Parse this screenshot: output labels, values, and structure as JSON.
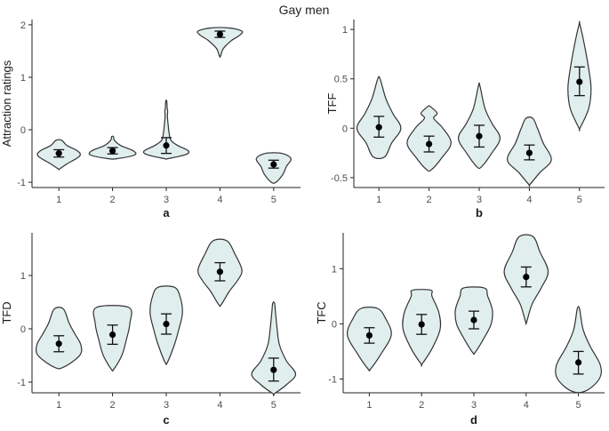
{
  "figure": {
    "title": "Gay men"
  },
  "chart_data": [
    {
      "type": "violin",
      "panel_label": "a",
      "ylabel": "Attraction ratings",
      "categories": [
        "1",
        "2",
        "3",
        "4",
        "5"
      ],
      "ylim": [
        -1.1,
        2.1
      ],
      "yticks": [
        -1,
        0,
        1,
        2
      ],
      "points": [
        {
          "mean": -0.45,
          "lower": -0.52,
          "upper": -0.38
        },
        {
          "mean": -0.4,
          "lower": -0.46,
          "upper": -0.34
        },
        {
          "mean": -0.3,
          "lower": -0.45,
          "upper": -0.15
        },
        {
          "mean": 1.82,
          "lower": 1.76,
          "upper": 1.88
        },
        {
          "mean": -0.66,
          "lower": -0.73,
          "upper": -0.58
        }
      ],
      "violins": [
        {
          "profile": [
            [
              -0.75,
              0.02
            ],
            [
              -0.65,
              0.35
            ],
            [
              -0.5,
              0.9
            ],
            [
              -0.4,
              0.8
            ],
            [
              -0.3,
              0.35
            ],
            [
              -0.2,
              0.12
            ]
          ]
        },
        {
          "profile": [
            [
              -0.55,
              0.2
            ],
            [
              -0.48,
              0.95
            ],
            [
              -0.4,
              0.9
            ],
            [
              -0.3,
              0.35
            ],
            [
              -0.2,
              0.08
            ],
            [
              -0.13,
              0.04
            ]
          ]
        },
        {
          "profile": [
            [
              -0.55,
              0.08
            ],
            [
              -0.47,
              0.85
            ],
            [
              -0.4,
              0.95
            ],
            [
              -0.3,
              0.5
            ],
            [
              -0.2,
              0.2
            ],
            [
              -0.05,
              0.12
            ],
            [
              0.1,
              0.08
            ],
            [
              0.25,
              0.05
            ],
            [
              0.35,
              0.06
            ],
            [
              0.42,
              0.04
            ],
            [
              0.55,
              0.02
            ]
          ]
        },
        {
          "profile": [
            [
              1.4,
              0.02
            ],
            [
              1.55,
              0.15
            ],
            [
              1.7,
              0.5
            ],
            [
              1.8,
              0.85
            ],
            [
              1.88,
              0.95
            ],
            [
              1.94,
              0.4
            ]
          ]
        },
        {
          "profile": [
            [
              -1.0,
              0.1
            ],
            [
              -0.85,
              0.4
            ],
            [
              -0.7,
              0.55
            ],
            [
              -0.55,
              0.75
            ],
            [
              -0.45,
              0.35
            ]
          ]
        }
      ]
    },
    {
      "type": "violin",
      "panel_label": "b",
      "ylabel": "TFF",
      "categories": [
        "1",
        "2",
        "3",
        "4",
        "5"
      ],
      "ylim": [
        -0.6,
        1.1
      ],
      "yticks": [
        -0.5,
        0.0,
        0.5,
        1.0
      ],
      "points": [
        {
          "mean": 0.01,
          "lower": -0.09,
          "upper": 0.12
        },
        {
          "mean": -0.16,
          "lower": -0.24,
          "upper": -0.08
        },
        {
          "mean": -0.08,
          "lower": -0.19,
          "upper": 0.03
        },
        {
          "mean": -0.25,
          "lower": -0.32,
          "upper": -0.17
        },
        {
          "mean": 0.47,
          "lower": 0.33,
          "upper": 0.62
        }
      ],
      "violins": [
        {
          "profile": [
            [
              -0.29,
              0.25
            ],
            [
              -0.15,
              0.55
            ],
            [
              0.0,
              0.95
            ],
            [
              0.15,
              0.6
            ],
            [
              0.3,
              0.3
            ],
            [
              0.5,
              0.05
            ]
          ]
        },
        {
          "profile": [
            [
              -0.42,
              0.1
            ],
            [
              -0.3,
              0.55
            ],
            [
              -0.15,
              0.95
            ],
            [
              0.0,
              0.6
            ],
            [
              0.1,
              0.2
            ],
            [
              0.15,
              0.35
            ],
            [
              0.22,
              0.05
            ]
          ]
        },
        {
          "profile": [
            [
              -0.39,
              0.1
            ],
            [
              -0.25,
              0.55
            ],
            [
              -0.1,
              0.9
            ],
            [
              0.05,
              0.55
            ],
            [
              0.2,
              0.25
            ],
            [
              0.43,
              0.03
            ]
          ]
        },
        {
          "profile": [
            [
              -0.57,
              0.02
            ],
            [
              -0.45,
              0.45
            ],
            [
              -0.32,
              0.95
            ],
            [
              -0.15,
              0.6
            ],
            [
              0.0,
              0.35
            ],
            [
              0.1,
              0.15
            ]
          ]
        },
        {
          "profile": [
            [
              0.0,
              0.02
            ],
            [
              0.2,
              0.4
            ],
            [
              0.4,
              0.5
            ],
            [
              0.6,
              0.4
            ],
            [
              0.8,
              0.25
            ],
            [
              1.05,
              0.02
            ]
          ]
        }
      ]
    },
    {
      "type": "violin",
      "panel_label": "c",
      "ylabel": "TFD",
      "categories": [
        "1",
        "2",
        "3",
        "4",
        "5"
      ],
      "ylim": [
        -1.2,
        1.8
      ],
      "yticks": [
        -1,
        0,
        1
      ],
      "points": [
        {
          "mean": -0.28,
          "lower": -0.43,
          "upper": -0.13
        },
        {
          "mean": -0.11,
          "lower": -0.29,
          "upper": 0.07
        },
        {
          "mean": 0.09,
          "lower": -0.1,
          "upper": 0.28
        },
        {
          "mean": 1.07,
          "lower": 0.9,
          "upper": 1.24
        },
        {
          "mean": -0.77,
          "lower": -0.98,
          "upper": -0.55
        }
      ],
      "violins": [
        {
          "profile": [
            [
              -0.72,
              0.2
            ],
            [
              -0.5,
              0.9
            ],
            [
              -0.3,
              0.95
            ],
            [
              -0.1,
              0.7
            ],
            [
              0.1,
              0.45
            ],
            [
              0.37,
              0.2
            ]
          ]
        },
        {
          "profile": [
            [
              -0.76,
              0.05
            ],
            [
              -0.5,
              0.4
            ],
            [
              -0.2,
              0.6
            ],
            [
              0.1,
              0.75
            ],
            [
              0.4,
              0.7
            ]
          ]
        },
        {
          "profile": [
            [
              -0.63,
              0.05
            ],
            [
              -0.3,
              0.35
            ],
            [
              0.0,
              0.55
            ],
            [
              0.3,
              0.7
            ],
            [
              0.6,
              0.6
            ],
            [
              0.78,
              0.35
            ]
          ]
        },
        {
          "profile": [
            [
              0.45,
              0.05
            ],
            [
              0.7,
              0.4
            ],
            [
              0.9,
              0.75
            ],
            [
              1.1,
              0.95
            ],
            [
              1.4,
              0.65
            ],
            [
              1.65,
              0.3
            ]
          ]
        },
        {
          "profile": [
            [
              -1.22,
              0.02
            ],
            [
              -1.05,
              0.55
            ],
            [
              -0.85,
              0.95
            ],
            [
              -0.6,
              0.55
            ],
            [
              -0.3,
              0.25
            ],
            [
              0.0,
              0.15
            ],
            [
              0.3,
              0.08
            ],
            [
              0.48,
              0.04
            ]
          ]
        }
      ]
    },
    {
      "type": "violin",
      "panel_label": "d",
      "ylabel": "TFC",
      "categories": [
        "1",
        "2",
        "3",
        "4",
        "5"
      ],
      "ylim": [
        -1.25,
        1.65
      ],
      "yticks": [
        -1,
        0,
        1
      ],
      "points": [
        {
          "mean": -0.21,
          "lower": -0.35,
          "upper": -0.07
        },
        {
          "mean": -0.01,
          "lower": -0.19,
          "upper": 0.17
        },
        {
          "mean": 0.07,
          "lower": -0.09,
          "upper": 0.23
        },
        {
          "mean": 0.85,
          "lower": 0.67,
          "upper": 1.03
        },
        {
          "mean": -0.7,
          "lower": -0.91,
          "upper": -0.5
        }
      ],
      "violins": [
        {
          "profile": [
            [
              -0.82,
              0.05
            ],
            [
              -0.55,
              0.5
            ],
            [
              -0.2,
              0.95
            ],
            [
              0.1,
              0.7
            ],
            [
              0.28,
              0.35
            ]
          ]
        },
        {
          "profile": [
            [
              -0.73,
              0.02
            ],
            [
              -0.45,
              0.45
            ],
            [
              -0.1,
              0.8
            ],
            [
              0.2,
              0.75
            ],
            [
              0.5,
              0.45
            ],
            [
              0.61,
              0.4
            ]
          ]
        },
        {
          "profile": [
            [
              -0.52,
              0.05
            ],
            [
              -0.25,
              0.45
            ],
            [
              0.0,
              0.75
            ],
            [
              0.25,
              0.8
            ],
            [
              0.5,
              0.6
            ],
            [
              0.65,
              0.45
            ]
          ]
        },
        {
          "profile": [
            [
              0.03,
              0.02
            ],
            [
              0.35,
              0.25
            ],
            [
              0.65,
              0.65
            ],
            [
              0.95,
              0.95
            ],
            [
              1.3,
              0.6
            ],
            [
              1.58,
              0.3
            ]
          ]
        },
        {
          "profile": [
            [
              -1.22,
              0.3
            ],
            [
              -1.0,
              0.9
            ],
            [
              -0.75,
              0.95
            ],
            [
              -0.4,
              0.5
            ],
            [
              -0.1,
              0.2
            ],
            [
              0.27,
              0.05
            ]
          ]
        }
      ]
    }
  ]
}
